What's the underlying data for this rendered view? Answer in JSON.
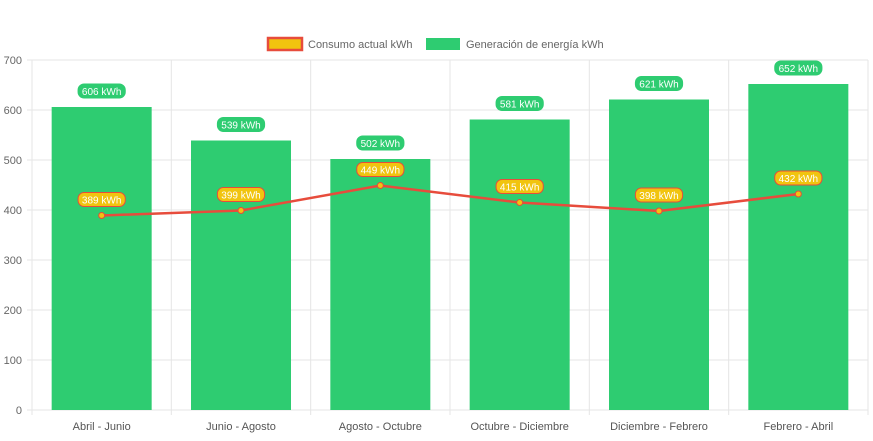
{
  "chart_data": {
    "type": "bar",
    "categories": [
      "Abril - Junio",
      "Junio - Agosto",
      "Agosto - Octubre",
      "Octubre - Diciembre",
      "Diciembre - Febrero",
      "Febrero - Abril"
    ],
    "series": [
      {
        "name": "Consumo actual kWh",
        "type": "line",
        "values": [
          389,
          399,
          449,
          415,
          398,
          432
        ],
        "labels": [
          "389 kWh",
          "399 kWh",
          "449 kWh",
          "415 kWh",
          "398 kWh",
          "432 kWh"
        ],
        "color": "#e74c3c",
        "fill": "#f1c40f"
      },
      {
        "name": "Generación de energía kWh",
        "type": "bar",
        "values": [
          606,
          539,
          502,
          581,
          621,
          652
        ],
        "labels": [
          "606 kWh",
          "539 kWh",
          "502 kWh",
          "581 kWh",
          "621 kWh",
          "652 kWh"
        ],
        "color": "#2ecc71"
      }
    ],
    "ylim": [
      0,
      700
    ],
    "yticks": [
      "0",
      "100",
      "200",
      "300",
      "400",
      "500",
      "600",
      "700"
    ],
    "grid": true,
    "legend": "top"
  }
}
